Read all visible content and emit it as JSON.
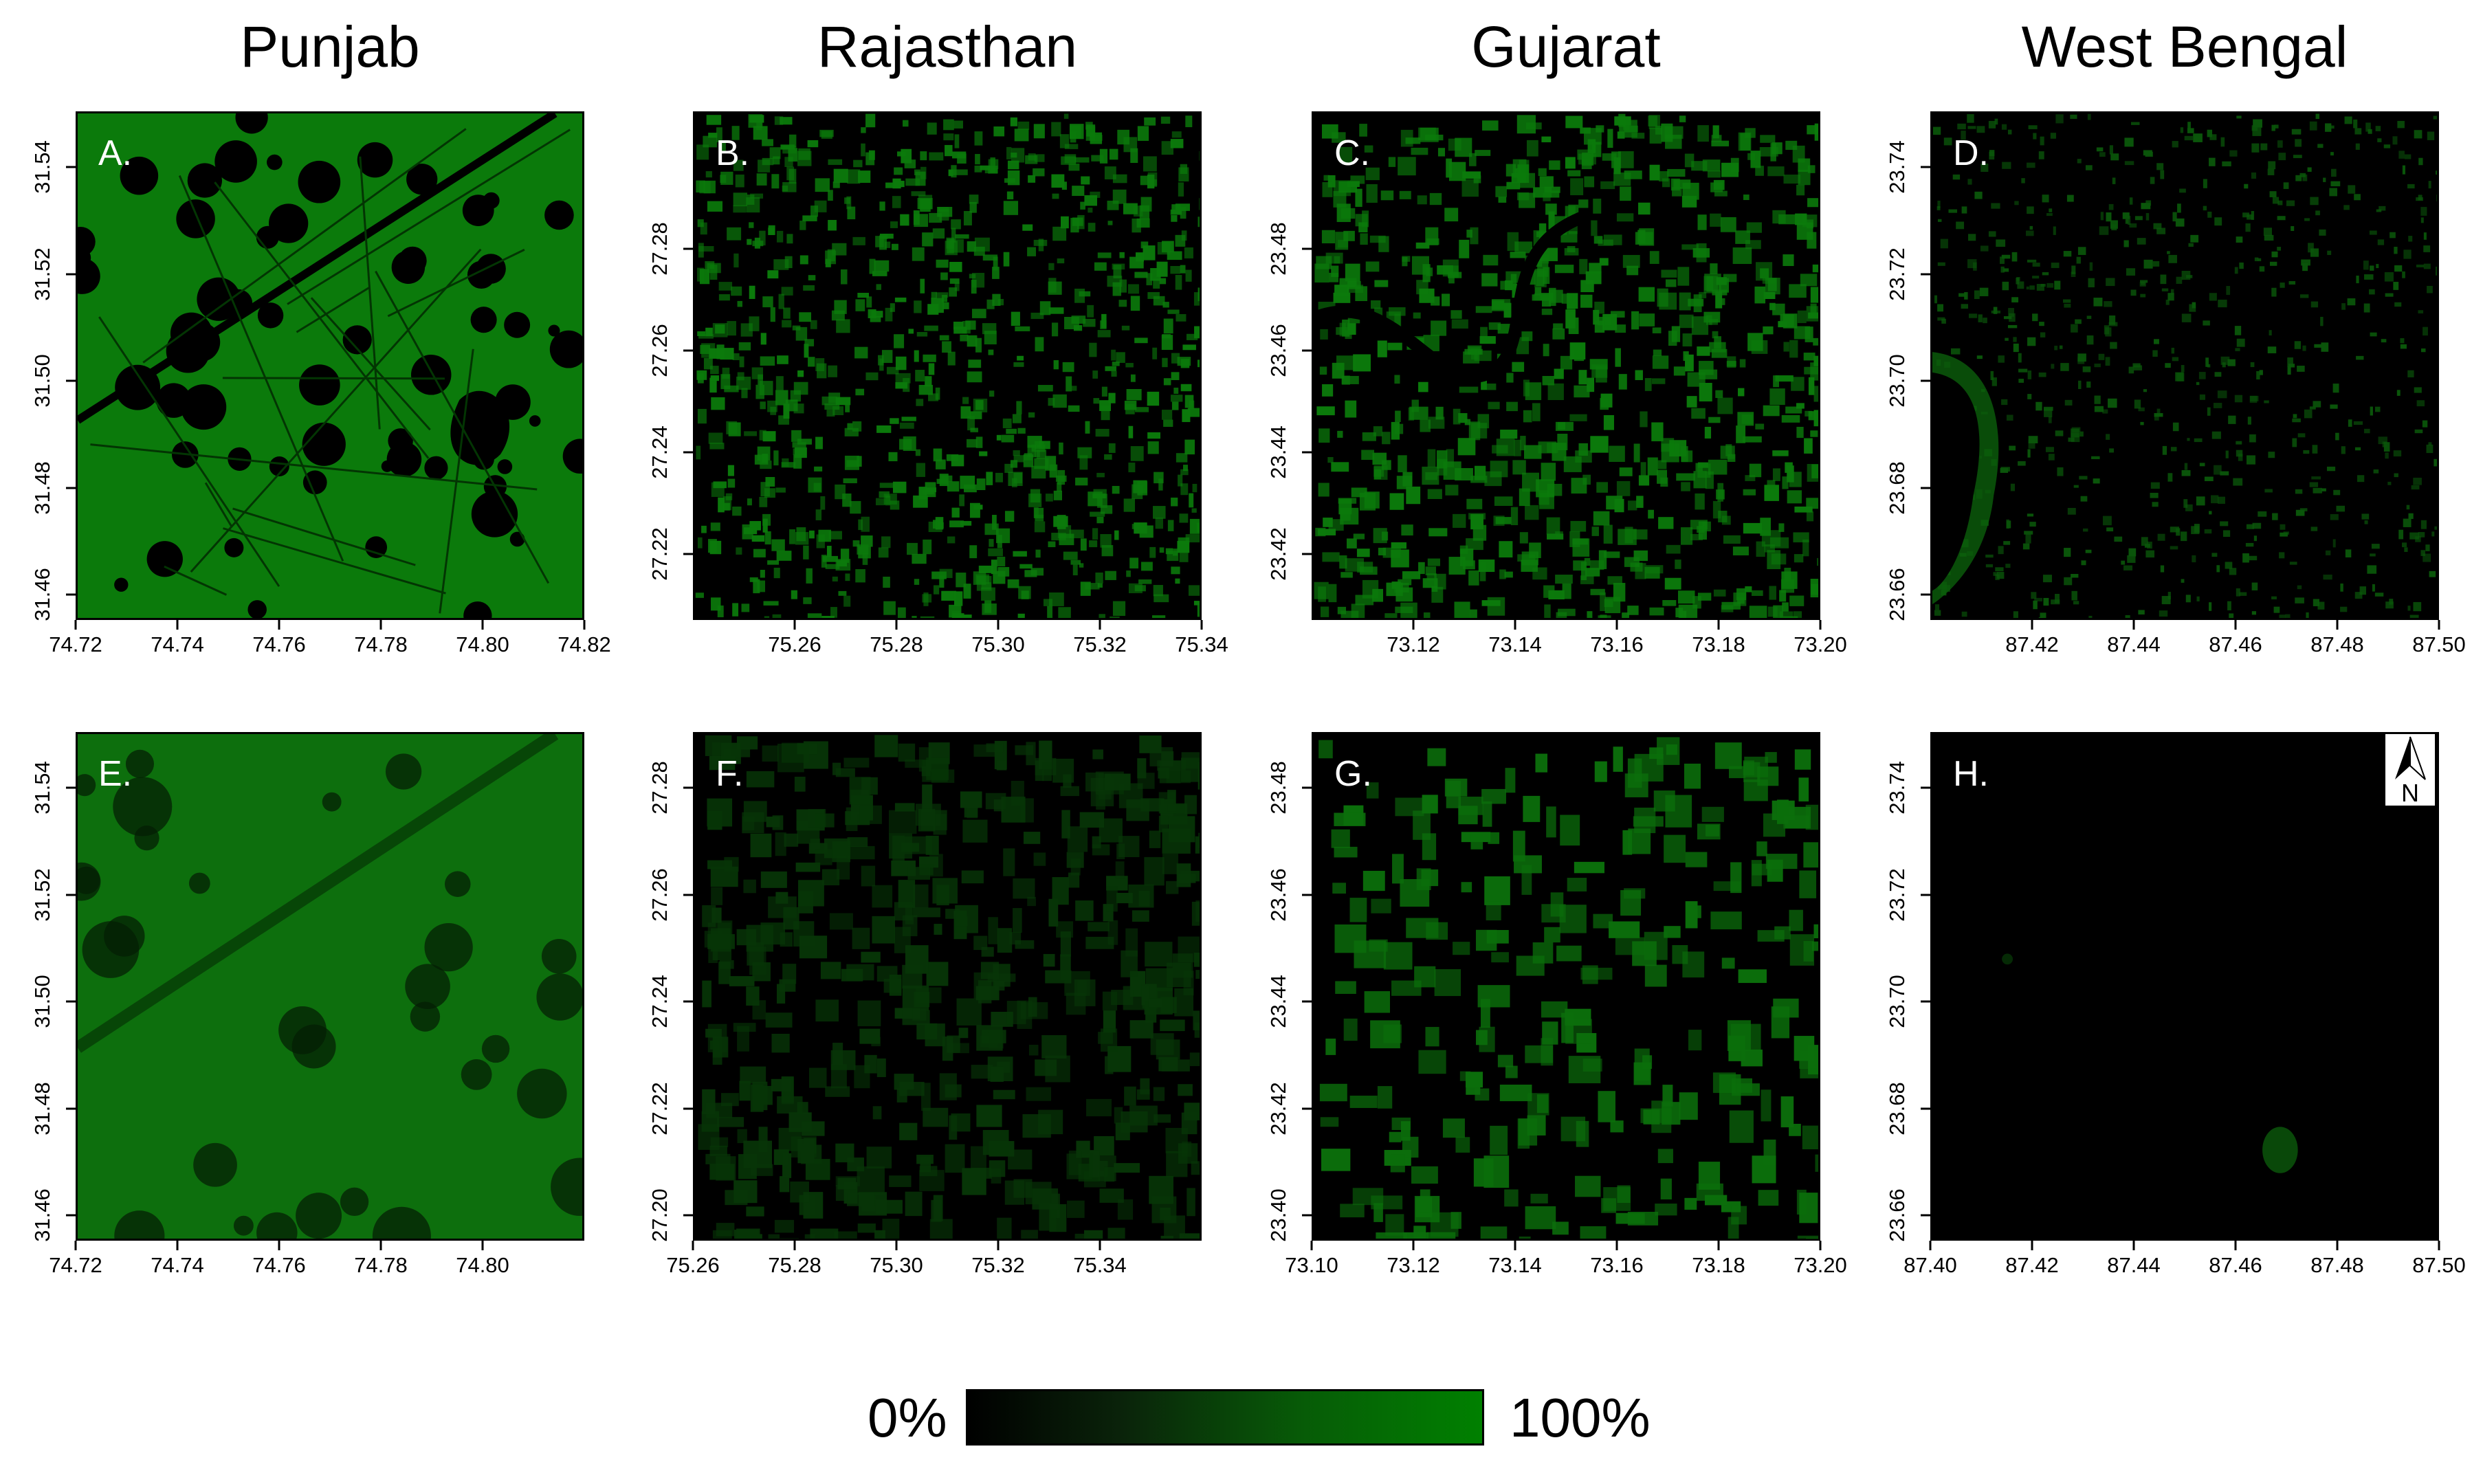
{
  "figure": {
    "columns": [
      {
        "title": "Punjab",
        "x_ticks": [
          "74.72",
          "74.74",
          "74.76",
          "74.78",
          "74.80",
          "74.82"
        ],
        "y_ticks": [
          "31.46",
          "31.48",
          "31.50",
          "31.52",
          "31.54"
        ]
      },
      {
        "title": "Rajasthan",
        "x_ticks": [
          "75.26",
          "75.28",
          "75.30",
          "75.32",
          "75.34"
        ],
        "y_ticks": [
          "27.22",
          "27.24",
          "27.26",
          "27.28"
        ]
      },
      {
        "title": "Gujarat",
        "x_ticks": [
          "73.12",
          "73.14",
          "73.16",
          "73.18",
          "73.20"
        ],
        "y_ticks": [
          "23.42",
          "23.44",
          "23.46",
          "23.48"
        ]
      },
      {
        "title": "West Bengal",
        "x_ticks": [
          "87.42",
          "87.44",
          "87.46",
          "87.48",
          "87.50"
        ],
        "y_ticks": [
          "23.66",
          "23.68",
          "23.70",
          "23.72",
          "23.74"
        ]
      }
    ],
    "rows": [
      {
        "letters": [
          "A.",
          "B.",
          "C.",
          "D."
        ]
      },
      {
        "letters": [
          "E.",
          "F.",
          "G.",
          "H."
        ]
      }
    ],
    "bottom_x_ticks": [
      [
        "74.72",
        "74.74",
        "74.76",
        "74.78",
        "74.80"
      ],
      [
        "75.26",
        "75.28",
        "75.30",
        "75.32",
        "75.34"
      ],
      [
        "73.10",
        "73.12",
        "73.14",
        "73.16",
        "73.18",
        "73.20"
      ],
      [
        "87.40",
        "87.42",
        "87.44",
        "87.46",
        "87.48",
        "87.50"
      ]
    ],
    "bottom_y_ticks": [
      [
        "31.46",
        "31.48",
        "31.50",
        "31.52",
        "31.54"
      ],
      [
        "27.20",
        "27.22",
        "27.24",
        "27.26",
        "27.28"
      ],
      [
        "23.40",
        "23.42",
        "23.44",
        "23.46",
        "23.48"
      ],
      [
        "23.66",
        "23.68",
        "23.70",
        "23.72",
        "23.74"
      ]
    ],
    "north_label": "N",
    "legend": {
      "min_label": "0%",
      "max_label": "100%",
      "color_low": "#000000",
      "color_high": "#008000"
    },
    "palette": {
      "full_green": "#0b7a0b",
      "dark": "#000000"
    }
  }
}
